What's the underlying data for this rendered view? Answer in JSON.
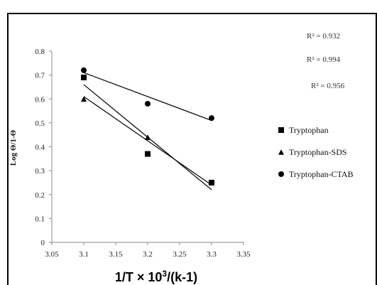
{
  "chart_data": {
    "type": "scatter",
    "xlabel_parts": [
      "1/T × 10",
      "3",
      "/(k-1)"
    ],
    "ylabel": "Log Θ/1-Θ",
    "xlim": [
      3.05,
      3.35
    ],
    "ylim": [
      0,
      0.8
    ],
    "xticks": [
      "3.05",
      "3.1",
      "3.15",
      "3.2",
      "3.25",
      "3.3",
      "3.35"
    ],
    "yticks": [
      "0",
      "0.1",
      "0.2",
      "0.3",
      "0.4",
      "0.5",
      "0.6",
      "0.7",
      "0.8"
    ],
    "grid": false,
    "legend_position": "right",
    "series": [
      {
        "name": "Tryptophan",
        "marker": "square",
        "color": "#000000",
        "points": [
          {
            "x": 3.1,
            "y": 0.69
          },
          {
            "x": 3.2,
            "y": 0.37
          },
          {
            "x": 3.3,
            "y": 0.25
          }
        ],
        "trendline": {
          "x1": 3.1,
          "y1": 0.66,
          "x2": 3.3,
          "y2": 0.22
        },
        "r2": "R² = 0.932"
      },
      {
        "name": "Tryptophan-SDS",
        "marker": "triangle",
        "color": "#000000",
        "points": [
          {
            "x": 3.1,
            "y": 0.6
          },
          {
            "x": 3.2,
            "y": 0.44
          },
          {
            "x": 3.3,
            "y": 0.25
          }
        ],
        "trendline": {
          "x1": 3.1,
          "y1": 0.61,
          "x2": 3.3,
          "y2": 0.24
        },
        "r2": "R² = 0.994"
      },
      {
        "name": "Tryptophan-CTAB",
        "marker": "circle",
        "color": "#000000",
        "points": [
          {
            "x": 3.1,
            "y": 0.72
          },
          {
            "x": 3.2,
            "y": 0.58
          },
          {
            "x": 3.3,
            "y": 0.52
          }
        ],
        "trendline": {
          "x1": 3.1,
          "y1": 0.71,
          "x2": 3.3,
          "y2": 0.51
        },
        "r2": "R² = 0.956"
      }
    ]
  }
}
